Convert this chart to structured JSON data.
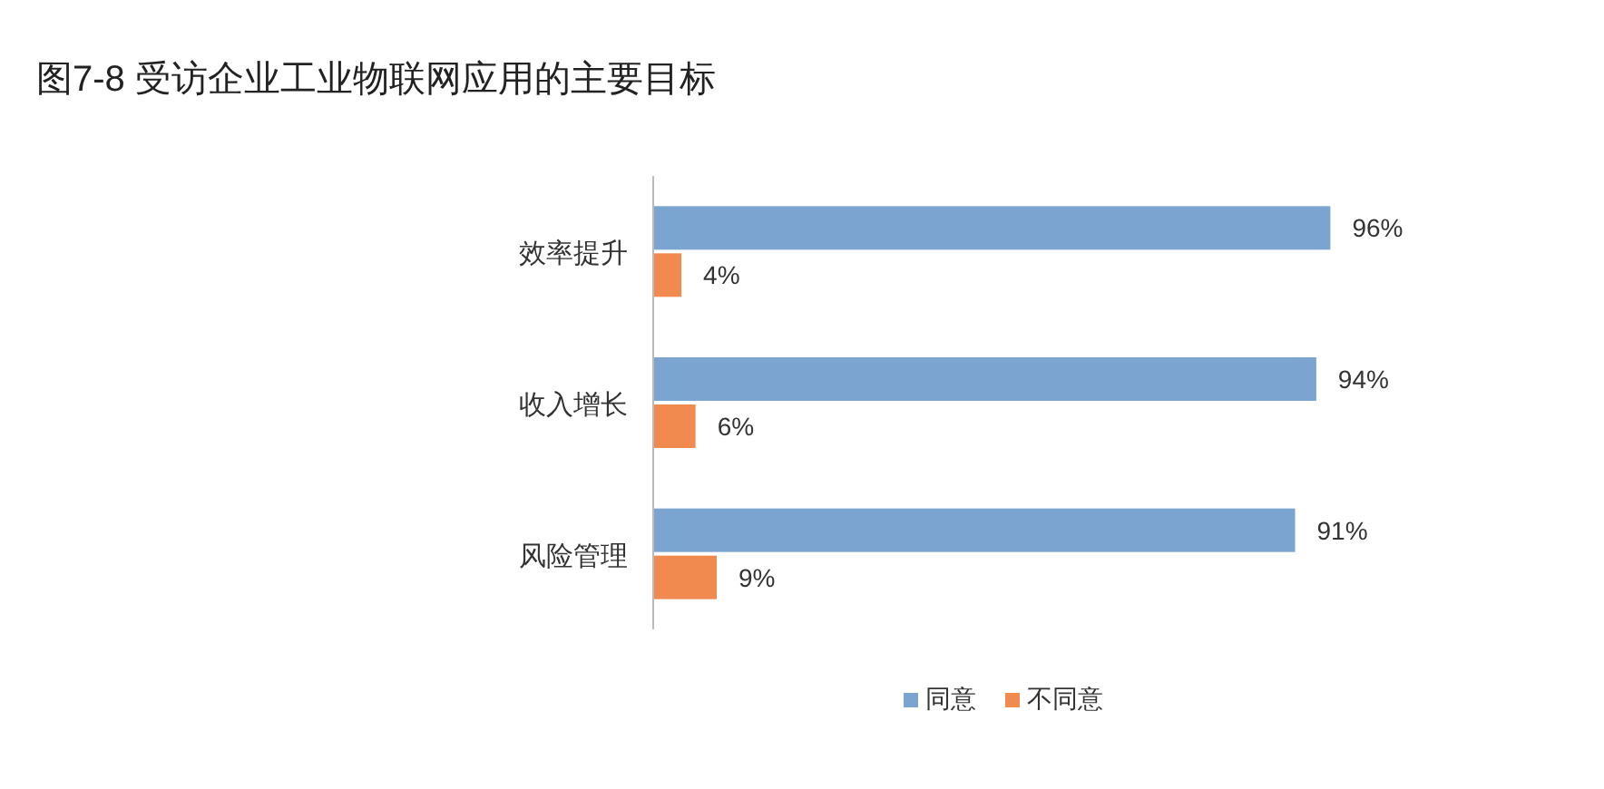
{
  "chart_data": {
    "type": "bar",
    "orientation": "horizontal",
    "title": "图7-8  受访企业工业物联网应用的主要目标",
    "categories": [
      "效率提升",
      "收入增长",
      "风险管理"
    ],
    "series": [
      {
        "name": "同意",
        "color": "#7ba4d0",
        "values": [
          96,
          94,
          91
        ],
        "value_labels": [
          "96%",
          "94%",
          "91%"
        ]
      },
      {
        "name": "不同意",
        "color": "#f08a4f",
        "values": [
          4,
          6,
          9
        ],
        "value_labels": [
          "4%",
          "6%",
          "9%"
        ]
      }
    ],
    "legend": "bottom"
  }
}
